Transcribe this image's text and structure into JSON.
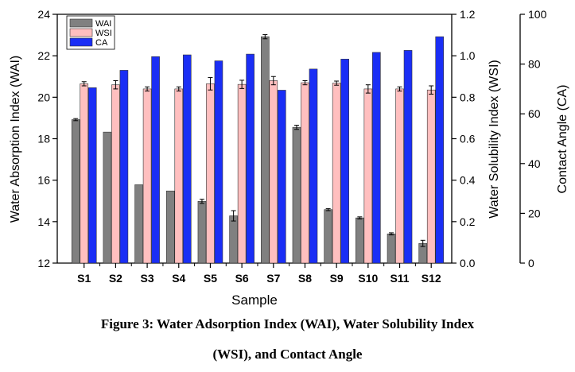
{
  "caption": {
    "line1": "Figure 3: Water Adsorption Index (WAI), Water Solubility Index",
    "line2": "(WSI), and Contact Angle"
  },
  "chart_data": {
    "type": "bar",
    "categories": [
      "S1",
      "S2",
      "S3",
      "S4",
      "S5",
      "S6",
      "S7",
      "S8",
      "S9",
      "S10",
      "S11",
      "S12"
    ],
    "xlabel": "Sample",
    "legend_position": "top-left",
    "axes": {
      "left": {
        "label": "Water Absorption Index (WAI)",
        "ylim": [
          12,
          24
        ],
        "ticks": [
          "12",
          "14",
          "16",
          "18",
          "20",
          "22",
          "24"
        ]
      },
      "right_inner": {
        "label": "Water Solubility Index (WSI)",
        "ylim": [
          0,
          1.2
        ],
        "ticks": [
          "0.0",
          "0.2",
          "0.4",
          "0.6",
          "0.8",
          "1.0",
          "1.2"
        ]
      },
      "right_outer": {
        "label": "Contact Angle (CA)",
        "ylim": [
          0,
          100
        ],
        "ticks": [
          "0",
          "20",
          "40",
          "60",
          "80",
          "100"
        ]
      }
    },
    "series": [
      {
        "name": "WAI",
        "axis": "left",
        "color": "#808080",
        "values": [
          18.92,
          18.32,
          15.78,
          15.48,
          14.98,
          14.28,
          22.92,
          18.55,
          14.58,
          14.18,
          13.41,
          12.95
        ],
        "errors": [
          0.05,
          0.0,
          0.0,
          0.0,
          0.1,
          0.25,
          0.1,
          0.1,
          0.05,
          0.05,
          0.05,
          0.15
        ]
      },
      {
        "name": "WSI",
        "axis": "right_inner",
        "color": "#ffbfbf",
        "values": [
          0.865,
          0.86,
          0.84,
          0.84,
          0.865,
          0.862,
          0.88,
          0.87,
          0.868,
          0.84,
          0.84,
          0.835
        ],
        "errors": [
          0.01,
          0.02,
          0.01,
          0.01,
          0.03,
          0.02,
          0.02,
          0.01,
          0.01,
          0.02,
          0.01,
          0.02
        ]
      },
      {
        "name": "CA",
        "axis": "right_outer",
        "color": "#1a2ef5",
        "values": [
          70.5,
          77.5,
          83.0,
          83.7,
          81.3,
          84.0,
          69.5,
          78.0,
          82.0,
          84.7,
          85.5,
          91.0
        ],
        "errors": [
          0,
          0,
          0,
          0,
          0,
          0,
          0,
          0,
          0,
          0,
          0,
          0
        ]
      }
    ]
  }
}
